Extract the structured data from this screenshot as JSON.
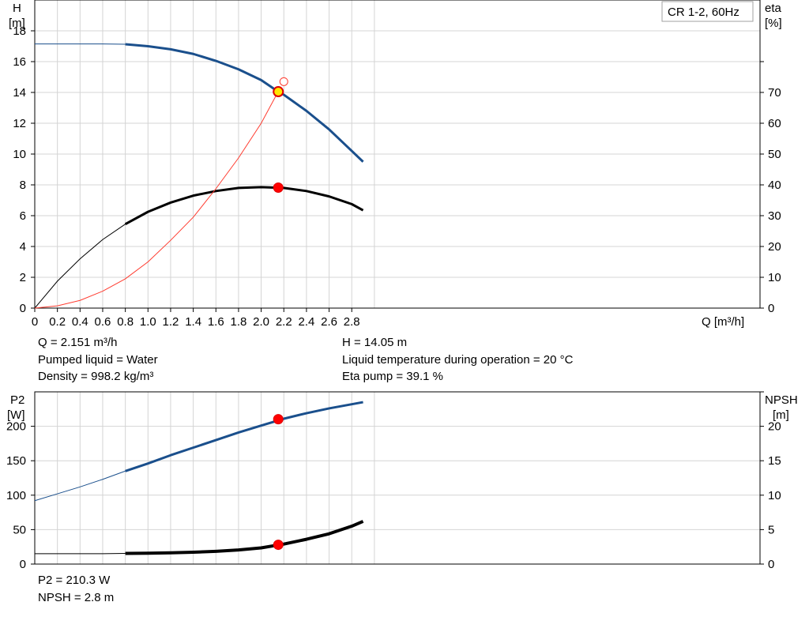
{
  "chart_data": [
    {
      "type": "line",
      "title": "CR 1-2, 60Hz",
      "xlabel": "Q [m³/h]",
      "ylabel_left": [
        "H",
        "[m]"
      ],
      "ylabel_right": [
        "eta",
        "[%]"
      ],
      "xlim": [
        0,
        3.2
      ],
      "ylim_left": [
        0,
        20
      ],
      "ylim_right": [
        0,
        100
      ],
      "grid": true,
      "x_ticks": [
        "0",
        "0.2",
        "0.4",
        "0.6",
        "0.8",
        "1.0",
        "1.2",
        "1.4",
        "1.6",
        "1.8",
        "2.0",
        "2.2",
        "2.4",
        "2.6",
        "2.8"
      ],
      "y_ticks_left": [
        "0",
        "2",
        "4",
        "6",
        "8",
        "10",
        "12",
        "14",
        "16",
        "18"
      ],
      "y_ticks_right": [
        "0",
        "10",
        "20",
        "30",
        "40",
        "50",
        "60",
        "70"
      ],
      "series": [
        {
          "axis": "left",
          "color": "#1a4f8c",
          "extrapolated_until": 0.8,
          "x": [
            0,
            0.2,
            0.4,
            0.6,
            0.8,
            1.0,
            1.2,
            1.4,
            1.6,
            1.8,
            2.0,
            2.15,
            2.2,
            2.4,
            2.6,
            2.8,
            2.9
          ],
          "values": [
            17.15,
            17.15,
            17.15,
            17.15,
            17.13,
            17.0,
            16.8,
            16.5,
            16.05,
            15.5,
            14.8,
            14.05,
            13.85,
            12.8,
            11.6,
            10.2,
            9.5
          ]
        },
        {
          "axis": "left",
          "color": "#000000",
          "extrapolated_until": 0.8,
          "x": [
            0,
            0.2,
            0.4,
            0.6,
            0.8,
            1.0,
            1.2,
            1.4,
            1.6,
            1.8,
            2.0,
            2.2,
            2.4,
            2.6,
            2.8,
            2.9
          ],
          "values": [
            0,
            1.75,
            3.2,
            4.45,
            5.45,
            6.25,
            6.85,
            7.3,
            7.6,
            7.8,
            7.85,
            7.8,
            7.6,
            7.25,
            6.75,
            6.35
          ]
        },
        {
          "axis": "left",
          "color": "#ff3b2f",
          "x": [
            0,
            0.2,
            0.4,
            0.6,
            0.8,
            1.0,
            1.2,
            1.4,
            1.6,
            1.8,
            2.0,
            2.15
          ],
          "values": [
            0,
            0.15,
            0.5,
            1.1,
            1.9,
            3.0,
            4.4,
            5.9,
            7.75,
            9.75,
            12.0,
            14.05
          ]
        }
      ],
      "markers": [
        {
          "x": 2.151,
          "y": 14.05,
          "style": "yellow-dot"
        },
        {
          "x": 2.151,
          "y": 7.82,
          "style": "red-dot"
        },
        {
          "x": 2.2,
          "y": 14.7,
          "style": "hollow-red"
        }
      ]
    },
    {
      "type": "line",
      "xlabel": "",
      "ylabel_left": [
        "P2",
        "[W]"
      ],
      "ylabel_right": [
        "NPSH",
        "[m]"
      ],
      "xlim": [
        0,
        3.2
      ],
      "ylim_left": [
        0,
        250
      ],
      "ylim_right": [
        0,
        25
      ],
      "grid": true,
      "y_ticks_left": [
        "0",
        "50",
        "100",
        "150",
        "200"
      ],
      "y_ticks_right": [
        "0",
        "5",
        "10",
        "15",
        "20"
      ],
      "series": [
        {
          "axis": "left",
          "color": "#1a4f8c",
          "extrapolated_until": 0.8,
          "x": [
            0,
            0.2,
            0.4,
            0.6,
            0.8,
            1.0,
            1.2,
            1.4,
            1.6,
            1.8,
            2.0,
            2.2,
            2.4,
            2.6,
            2.8,
            2.9
          ],
          "values": [
            92,
            102,
            112,
            123,
            135,
            146,
            158,
            169,
            180,
            191,
            201,
            211,
            219,
            226,
            232,
            235
          ]
        },
        {
          "axis": "left",
          "color": "#000000",
          "extrapolated_until": 0.8,
          "x": [
            0,
            0.2,
            0.4,
            0.6,
            0.8,
            1.0,
            1.2,
            1.4,
            1.6,
            1.8,
            2.0,
            2.2,
            2.4,
            2.6,
            2.8,
            2.9
          ],
          "values": [
            15,
            15,
            15,
            15,
            15.5,
            15.8,
            16.3,
            17.2,
            18.5,
            20.5,
            23.5,
            29,
            36,
            44,
            55,
            62
          ]
        }
      ],
      "markers": [
        {
          "x": 2.151,
          "y": 210.3,
          "style": "red-dot"
        },
        {
          "x": 2.151,
          "y": 28,
          "style": "red-dot"
        }
      ]
    }
  ],
  "info_top": {
    "q": "Q = 2.151 m³/h",
    "liquid": "Pumped liquid = Water",
    "density": "Density = 998.2 kg/m³",
    "h": "H = 14.05 m",
    "temp": "Liquid temperature during operation = 20 °C",
    "eta": "Eta pump = 39.1 %"
  },
  "info_bottom": {
    "p2": "P2 = 210.3 W",
    "npsh": "NPSH = 2.8 m"
  }
}
